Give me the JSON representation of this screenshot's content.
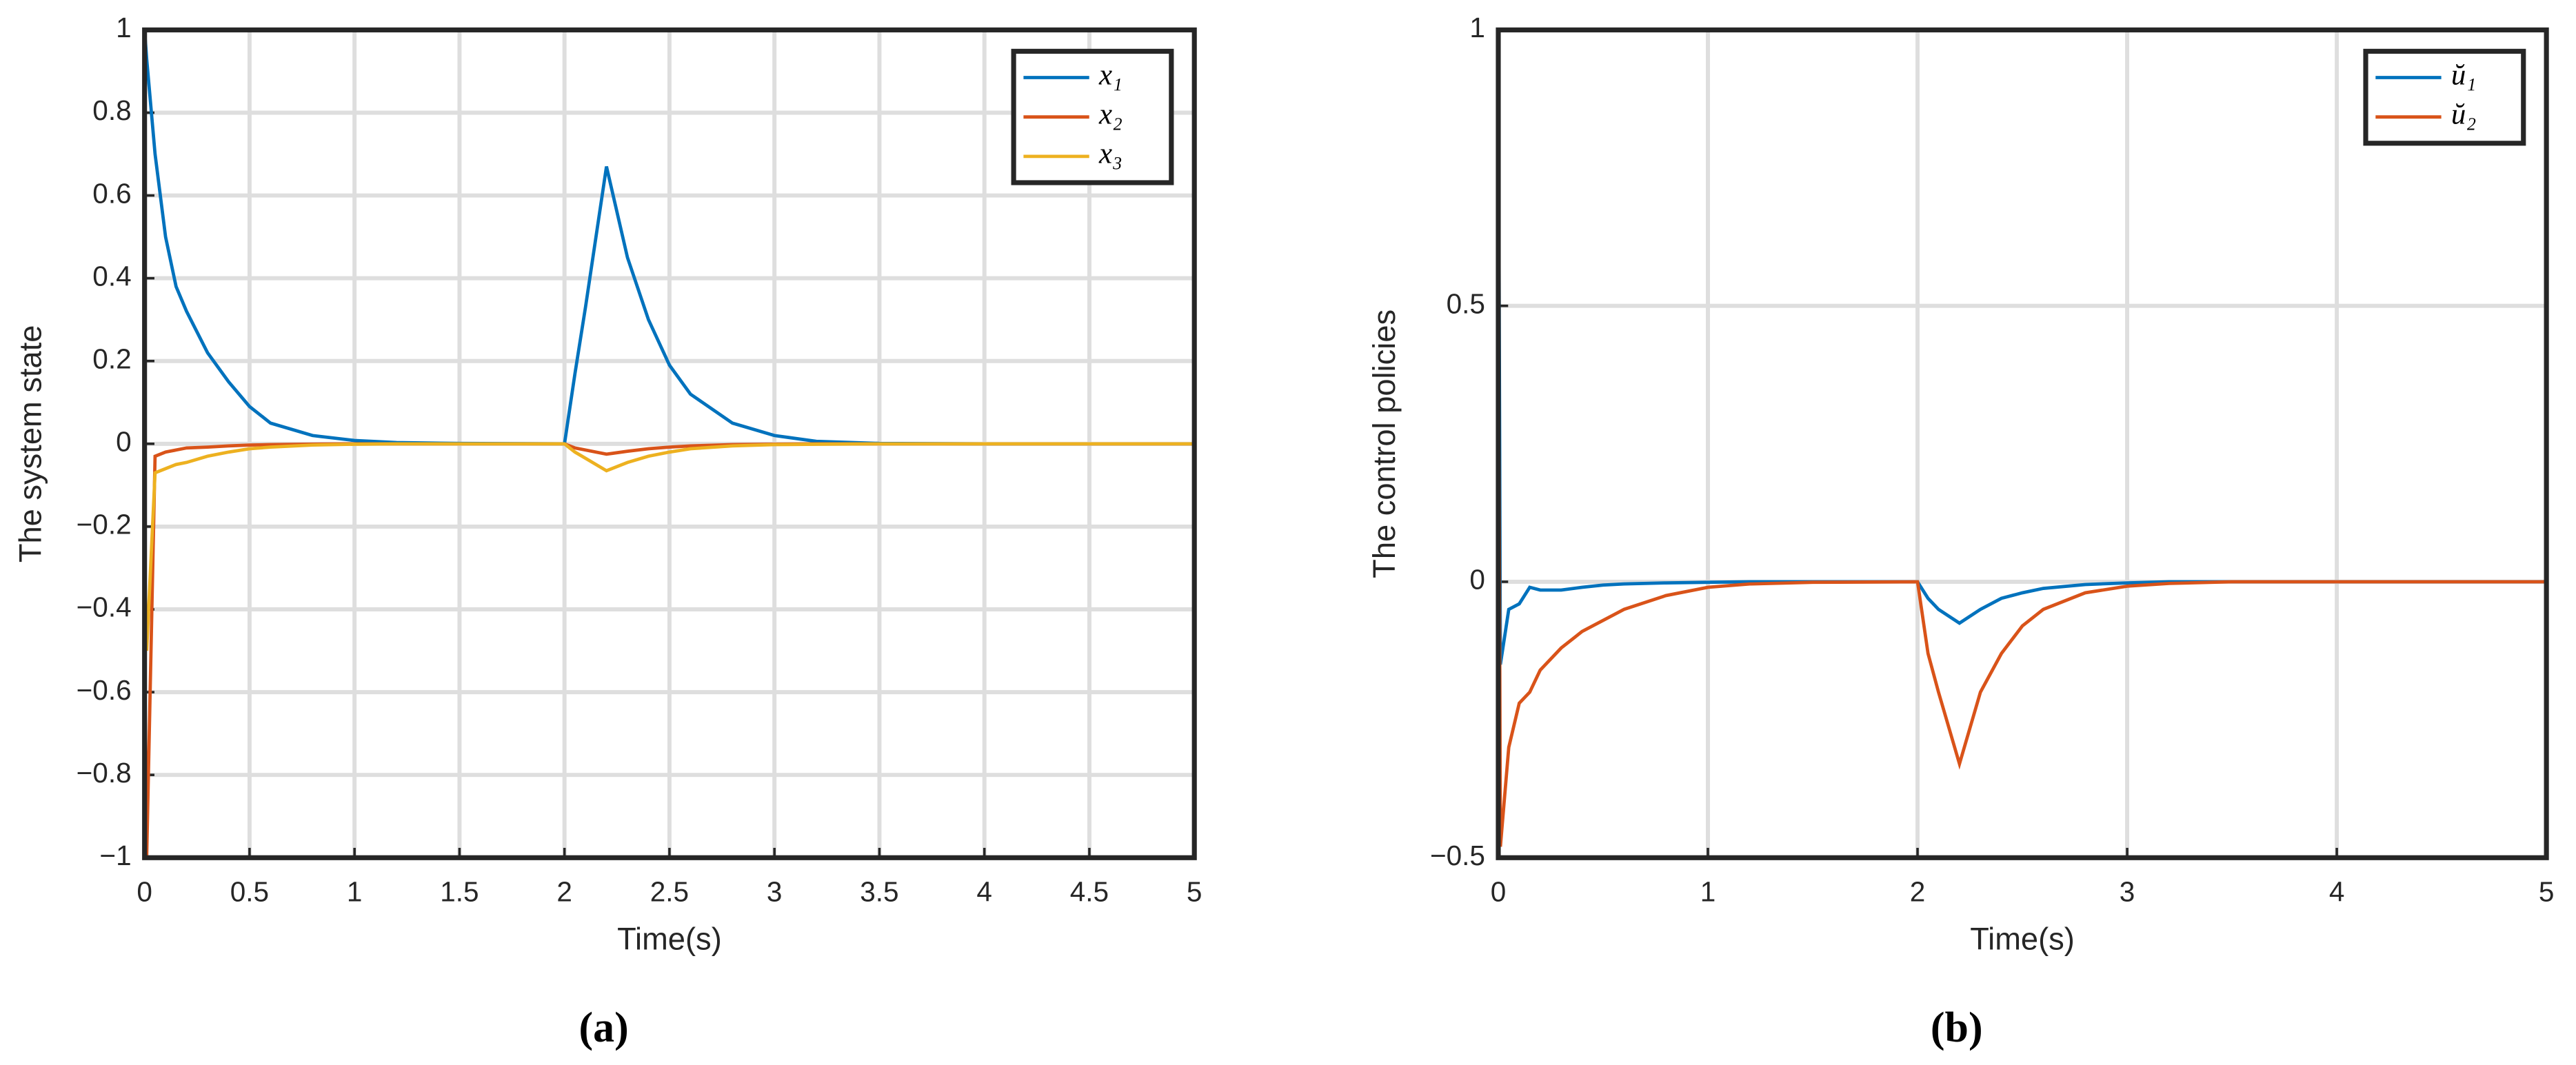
{
  "chart_data": [
    {
      "type": "line",
      "label": "(a)",
      "xlabel": "Time(s)",
      "ylabel": "The system state",
      "x": [
        0,
        0.01,
        0.05,
        0.1,
        0.15,
        0.2,
        0.3,
        0.4,
        0.5,
        0.6,
        0.8,
        1,
        1.2,
        1.5,
        2,
        2.05,
        2.1,
        2.2,
        2.3,
        2.4,
        2.5,
        2.6,
        2.8,
        3,
        3.2,
        3.5,
        4,
        4.5,
        5
      ],
      "series": [
        {
          "name": "x₁",
          "color": "#0072bd",
          "values": [
            1,
            0.93,
            0.7,
            0.5,
            0.38,
            0.32,
            0.22,
            0.15,
            0.09,
            0.05,
            0.02,
            0.008,
            0.003,
            0.001,
            0,
            0.17,
            0.33,
            0.67,
            0.45,
            0.3,
            0.19,
            0.12,
            0.05,
            0.02,
            0.006,
            0.001,
            0,
            0,
            0
          ]
        },
        {
          "name": "x₂",
          "color": "#d95319",
          "values": [
            -0.5,
            -1,
            -0.03,
            -0.02,
            -0.015,
            -0.01,
            -0.008,
            -0.005,
            -0.003,
            -0.002,
            -0.001,
            0,
            0,
            0,
            0,
            -0.01,
            -0.015,
            -0.025,
            -0.018,
            -0.012,
            -0.008,
            -0.005,
            -0.002,
            -0.001,
            0,
            0,
            0,
            0,
            0
          ]
        },
        {
          "name": "x₃",
          "color": "#edb120",
          "values": [
            -0.3,
            -0.5,
            -0.07,
            -0.06,
            -0.05,
            -0.045,
            -0.03,
            -0.02,
            -0.012,
            -0.008,
            -0.003,
            -0.001,
            0,
            0,
            0,
            -0.02,
            -0.035,
            -0.065,
            -0.045,
            -0.03,
            -0.02,
            -0.012,
            -0.005,
            -0.002,
            -0.001,
            0,
            0,
            0,
            0
          ]
        }
      ],
      "xlim": [
        0,
        5
      ],
      "xticks": [
        0,
        0.5,
        1,
        1.5,
        2,
        2.5,
        3,
        3.5,
        4,
        4.5,
        5
      ],
      "ylim": [
        -1,
        1
      ],
      "yticks": [
        {
          "value": -1,
          "label": "−1"
        },
        {
          "value": -0.8,
          "label": "−0.8"
        },
        {
          "value": -0.6,
          "label": "−0.6"
        },
        {
          "value": -0.4,
          "label": "−0.4"
        },
        {
          "value": -0.2,
          "label": "−0.2"
        },
        0,
        0.2,
        0.4,
        0.6,
        0.8,
        1
      ],
      "grid": true,
      "legend": "upper right"
    },
    {
      "type": "line",
      "label": "(b)",
      "xlabel": "Time(s)",
      "ylabel": "The control policies",
      "x": [
        0,
        0.01,
        0.05,
        0.1,
        0.15,
        0.2,
        0.3,
        0.4,
        0.5,
        0.6,
        0.8,
        1,
        1.2,
        1.5,
        2,
        2.05,
        2.1,
        2.2,
        2.3,
        2.4,
        2.5,
        2.6,
        2.8,
        3,
        3.2,
        3.5,
        4,
        4.5,
        5
      ],
      "series": [
        {
          "name": "ŭ₁",
          "color": "#0072bd",
          "values": [
            1,
            -0.15,
            -0.05,
            -0.04,
            -0.01,
            -0.015,
            -0.015,
            -0.01,
            -0.006,
            -0.004,
            -0.002,
            -0.001,
            0,
            0,
            0,
            -0.03,
            -0.05,
            -0.075,
            -0.05,
            -0.03,
            -0.02,
            -0.012,
            -0.005,
            -0.002,
            0,
            0,
            0,
            0,
            0
          ]
        },
        {
          "name": "ŭ₂",
          "color": "#d95319",
          "values": [
            0.68,
            -0.48,
            -0.3,
            -0.22,
            -0.2,
            -0.16,
            -0.12,
            -0.09,
            -0.07,
            -0.05,
            -0.025,
            -0.01,
            -0.004,
            -0.001,
            0,
            -0.13,
            -0.2,
            -0.33,
            -0.2,
            -0.13,
            -0.08,
            -0.05,
            -0.02,
            -0.008,
            -0.003,
            0,
            0,
            0,
            0
          ]
        }
      ],
      "xlim": [
        0,
        5
      ],
      "xticks": [
        0,
        1,
        2,
        3,
        4,
        5
      ],
      "ylim": [
        -0.5,
        1
      ],
      "yticks": [
        {
          "value": -0.5,
          "label": "−0.5"
        },
        0,
        0.5,
        1
      ],
      "grid": true,
      "legend": "upper right"
    }
  ]
}
